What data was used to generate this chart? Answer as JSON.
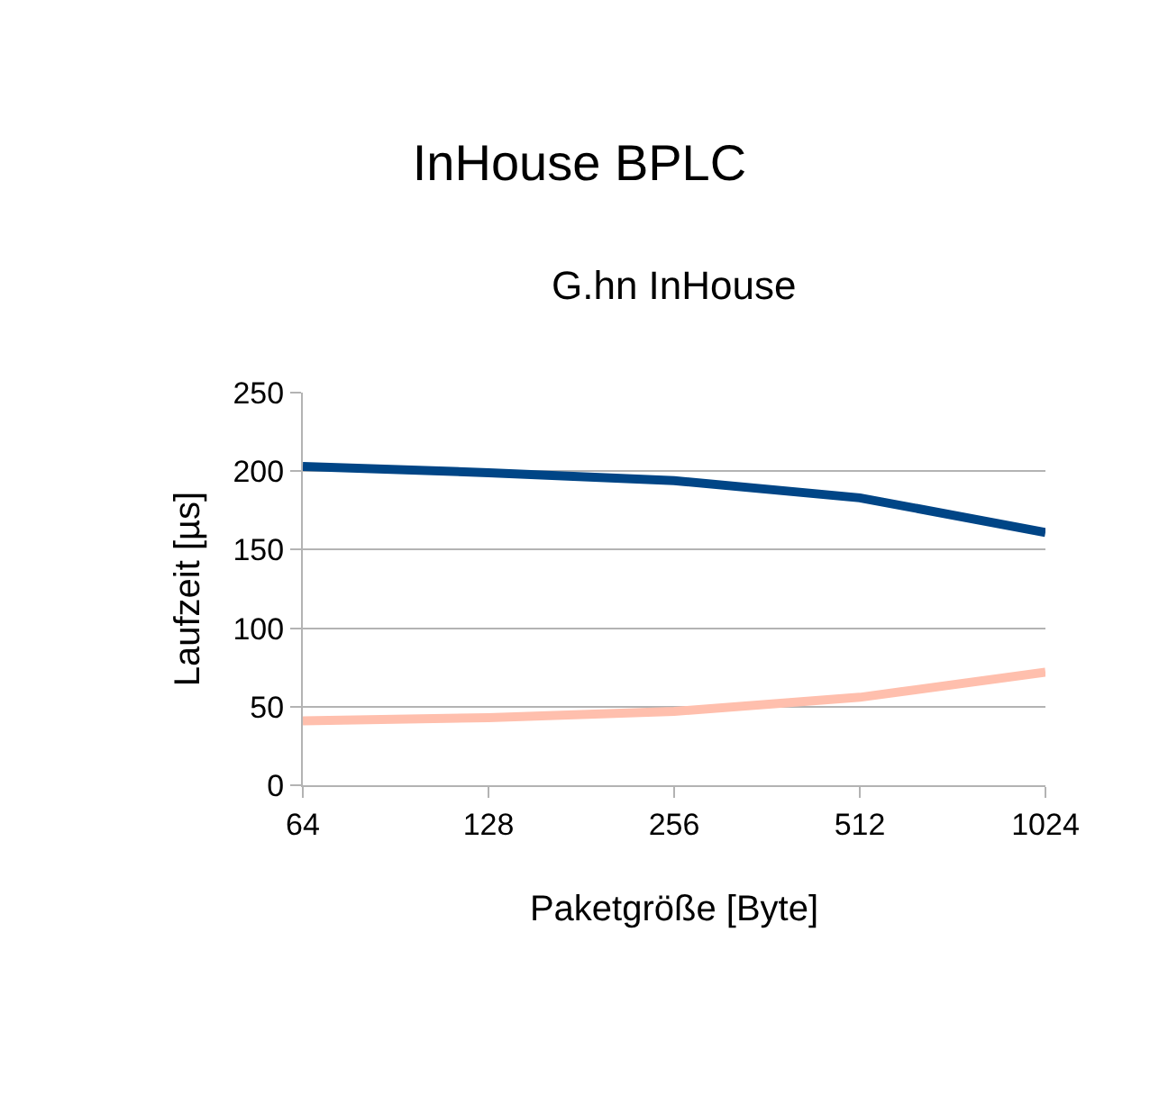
{
  "chart_data": {
    "type": "line",
    "title": "InHouse BPLC",
    "subtitle": "G.hn InHouse",
    "xlabel": "Paketgröße [Byte]",
    "ylabel": "Laufzeit [µs]",
    "categories": [
      "64",
      "128",
      "256",
      "512",
      "1024"
    ],
    "series": [
      {
        "color": "#004586",
        "values": [
          203,
          199,
          194,
          183,
          161
        ]
      },
      {
        "color": "#ffbfad",
        "values": [
          41,
          43,
          47,
          56,
          72
        ]
      }
    ],
    "ylim": [
      0,
      250
    ],
    "yticks": [
      0,
      50,
      100,
      150,
      200,
      250
    ],
    "grid": "y",
    "legend": false,
    "marker": "none",
    "line_style": "solid"
  }
}
